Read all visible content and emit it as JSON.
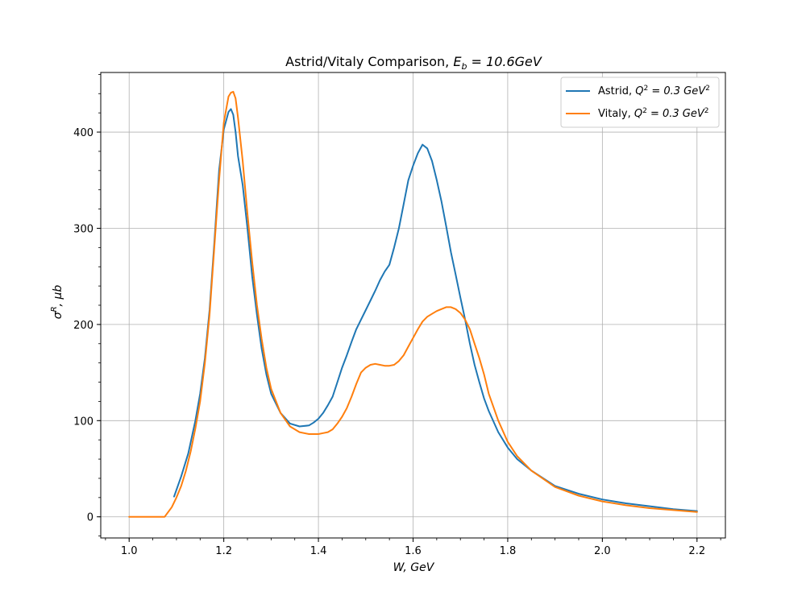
{
  "chart_data": {
    "type": "line",
    "title": "Astrid/Vitaly Comparison, E_b = 10.6GeV",
    "title_parts": {
      "plain": "Astrid/Vitaly Comparison, ",
      "math_base": "E",
      "math_sub": "b",
      "math_rest": " = 10.6GeV"
    },
    "xlabel": "W, GeV",
    "ylabel": "σ^R, μb",
    "ylabel_parts": {
      "base": "σ",
      "sup": "R",
      "rest": ", μb"
    },
    "xlim": [
      0.94,
      2.26
    ],
    "ylim": [
      -22,
      462
    ],
    "x_ticks": [
      1.0,
      1.2,
      1.4,
      1.6,
      1.8,
      2.0,
      2.2
    ],
    "x_tick_labels": [
      "1.0",
      "1.2",
      "1.4",
      "1.6",
      "1.8",
      "2.0",
      "2.2"
    ],
    "y_ticks": [
      0,
      100,
      200,
      300,
      400
    ],
    "y_tick_labels": [
      "0",
      "100",
      "200",
      "300",
      "400"
    ],
    "grid": true,
    "legend_position": "top-right",
    "series": [
      {
        "name": "Astrid, Q^2 = 0.3 GeV^2",
        "legend_parts": {
          "prefix": "Astrid, ",
          "base": "Q",
          "sup": "2",
          "mid": " = 0.3 GeV",
          "sup2": "2"
        },
        "color": "#1f77b4",
        "x": [
          1.095,
          1.11,
          1.125,
          1.14,
          1.15,
          1.16,
          1.17,
          1.18,
          1.19,
          1.2,
          1.21,
          1.215,
          1.22,
          1.225,
          1.23,
          1.24,
          1.25,
          1.26,
          1.27,
          1.28,
          1.29,
          1.3,
          1.32,
          1.34,
          1.36,
          1.38,
          1.39,
          1.4,
          1.41,
          1.42,
          1.43,
          1.44,
          1.45,
          1.46,
          1.47,
          1.48,
          1.49,
          1.5,
          1.51,
          1.52,
          1.53,
          1.54,
          1.55,
          1.56,
          1.57,
          1.58,
          1.59,
          1.6,
          1.61,
          1.62,
          1.63,
          1.64,
          1.65,
          1.66,
          1.67,
          1.68,
          1.69,
          1.7,
          1.71,
          1.72,
          1.73,
          1.74,
          1.75,
          1.76,
          1.78,
          1.8,
          1.82,
          1.85,
          1.9,
          1.95,
          2.0,
          2.05,
          2.1,
          2.15,
          2.2
        ],
        "y": [
          21,
          42,
          66,
          100,
          128,
          165,
          215,
          285,
          360,
          403,
          421,
          424,
          418,
          400,
          375,
          345,
          300,
          250,
          210,
          175,
          148,
          128,
          108,
          97,
          94,
          95,
          98,
          102,
          108,
          116,
          125,
          140,
          155,
          168,
          182,
          195,
          205,
          215,
          225,
          235,
          246,
          255,
          262,
          280,
          300,
          325,
          350,
          365,
          378,
          387,
          383,
          370,
          350,
          328,
          302,
          275,
          252,
          228,
          205,
          180,
          158,
          140,
          123,
          110,
          88,
          72,
          60,
          48,
          32,
          24,
          18,
          14,
          11,
          8,
          6
        ]
      },
      {
        "name": "Vitaly, Q^2 = 0.3 GeV^2",
        "legend_parts": {
          "prefix": "Vitaly, ",
          "base": "Q",
          "sup": "2",
          "mid": " = 0.3 GeV",
          "sup2": "2"
        },
        "color": "#ff7f0e",
        "x": [
          1.0,
          1.02,
          1.04,
          1.06,
          1.075,
          1.09,
          1.1,
          1.11,
          1.12,
          1.13,
          1.14,
          1.15,
          1.16,
          1.17,
          1.18,
          1.19,
          1.2,
          1.21,
          1.215,
          1.22,
          1.225,
          1.23,
          1.24,
          1.25,
          1.26,
          1.27,
          1.28,
          1.29,
          1.3,
          1.32,
          1.34,
          1.36,
          1.38,
          1.4,
          1.41,
          1.42,
          1.43,
          1.44,
          1.45,
          1.46,
          1.47,
          1.48,
          1.49,
          1.5,
          1.51,
          1.52,
          1.53,
          1.54,
          1.55,
          1.56,
          1.57,
          1.58,
          1.59,
          1.6,
          1.61,
          1.62,
          1.63,
          1.64,
          1.65,
          1.66,
          1.67,
          1.68,
          1.69,
          1.7,
          1.71,
          1.72,
          1.73,
          1.74,
          1.75,
          1.76,
          1.78,
          1.8,
          1.82,
          1.85,
          1.9,
          1.95,
          2.0,
          2.05,
          2.1,
          2.15,
          2.2
        ],
        "y": [
          0,
          0,
          0,
          0,
          0,
          10,
          20,
          32,
          48,
          68,
          92,
          120,
          160,
          210,
          280,
          350,
          410,
          437,
          441,
          442,
          435,
          415,
          370,
          315,
          265,
          220,
          185,
          155,
          133,
          108,
          94,
          88,
          86,
          86,
          87,
          88,
          91,
          97,
          104,
          113,
          125,
          138,
          150,
          155,
          158,
          159,
          158,
          157,
          157,
          158,
          162,
          168,
          177,
          186,
          195,
          203,
          208,
          211,
          214,
          216,
          218,
          218,
          216,
          212,
          205,
          195,
          180,
          165,
          148,
          128,
          100,
          78,
          63,
          48,
          31,
          22,
          16,
          12,
          9,
          7,
          5
        ]
      }
    ]
  }
}
